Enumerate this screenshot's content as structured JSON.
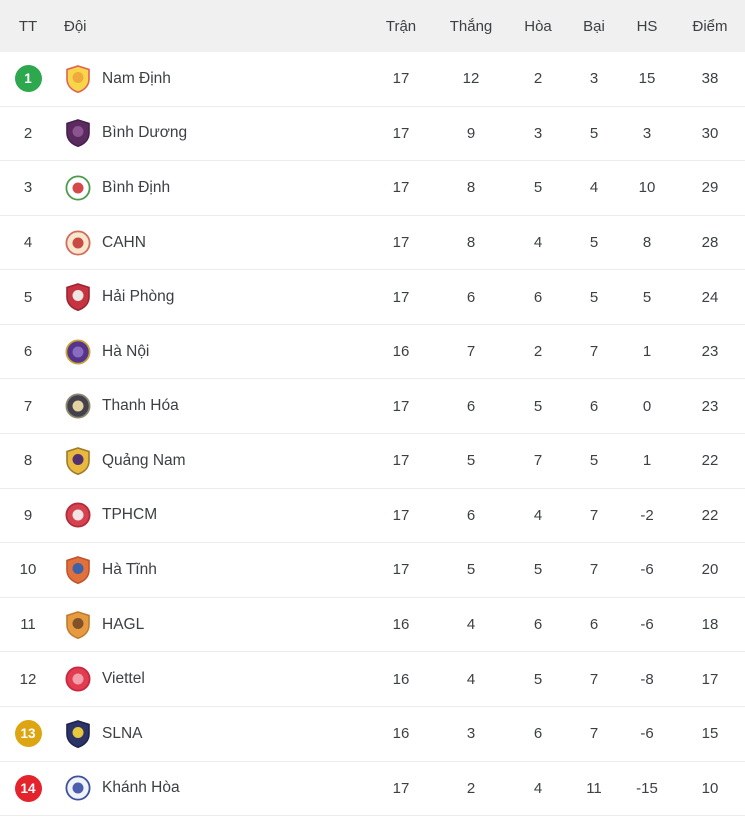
{
  "table": {
    "headers": [
      {
        "key": "pos",
        "label": "TT"
      },
      {
        "key": "team",
        "label": "Đội"
      },
      {
        "key": "played",
        "label": "Trận"
      },
      {
        "key": "won",
        "label": "Thắng"
      },
      {
        "key": "drawn",
        "label": "Hòa"
      },
      {
        "key": "lost",
        "label": "Bại"
      },
      {
        "key": "gd",
        "label": "HS"
      },
      {
        "key": "points",
        "label": "Điểm"
      }
    ],
    "marker_colors": {
      "green": "#2DA84E",
      "yellow": "#DCA511",
      "red": "#E3242D"
    },
    "rows": [
      {
        "pos": "1",
        "marker": "green",
        "team": "Nam Định",
        "played": "17",
        "won": "12",
        "drawn": "2",
        "lost": "3",
        "gd": "15",
        "points": "38",
        "badge": {
          "icon": "nam-dinh-crest-icon",
          "shape": "shield",
          "fill": "#F7D64B",
          "inner": "#EFA93C",
          "border": "#E2614F"
        }
      },
      {
        "pos": "2",
        "marker": null,
        "team": "Bình Dương",
        "played": "17",
        "won": "9",
        "drawn": "3",
        "lost": "5",
        "gd": "3",
        "points": "30",
        "badge": {
          "icon": "binh-duong-crest-icon",
          "shape": "shield",
          "fill": "#5B2B5F",
          "inner": "#8A5590",
          "border": "#47204C"
        }
      },
      {
        "pos": "3",
        "marker": null,
        "team": "Bình Định",
        "played": "17",
        "won": "8",
        "drawn": "5",
        "lost": "4",
        "gd": "10",
        "points": "29",
        "badge": {
          "icon": "binh-dinh-crest-icon",
          "shape": "circle",
          "fill": "#FFFFFF",
          "inner": "#D5494B",
          "border": "#4C9B4C"
        }
      },
      {
        "pos": "4",
        "marker": null,
        "team": "CAHN",
        "played": "17",
        "won": "8",
        "drawn": "4",
        "lost": "5",
        "gd": "8",
        "points": "28",
        "badge": {
          "icon": "cahn-crest-icon",
          "shape": "circle",
          "fill": "#F8E7CF",
          "inner": "#C94A44",
          "border": "#D46A5A"
        }
      },
      {
        "pos": "5",
        "marker": null,
        "team": "Hải Phòng",
        "played": "17",
        "won": "6",
        "drawn": "6",
        "lost": "5",
        "gd": "5",
        "points": "24",
        "badge": {
          "icon": "hai-phong-crest-icon",
          "shape": "shield",
          "fill": "#C63341",
          "inner": "#EDE7E2",
          "border": "#9E2431"
        }
      },
      {
        "pos": "6",
        "marker": null,
        "team": "Hà Nội",
        "played": "16",
        "won": "7",
        "drawn": "2",
        "lost": "7",
        "gd": "1",
        "points": "23",
        "badge": {
          "icon": "ha-noi-crest-icon",
          "shape": "circle",
          "fill": "#55348C",
          "inner": "#8A6BC0",
          "border": "#C9A437"
        }
      },
      {
        "pos": "7",
        "marker": null,
        "team": "Thanh Hóa",
        "played": "17",
        "won": "6",
        "drawn": "5",
        "lost": "6",
        "gd": "0",
        "points": "23",
        "badge": {
          "icon": "thanh-hoa-crest-icon",
          "shape": "circle",
          "fill": "#43414B",
          "inner": "#E3D3A1",
          "border": "#8E876F"
        }
      },
      {
        "pos": "8",
        "marker": null,
        "team": "Quảng Nam",
        "played": "17",
        "won": "5",
        "drawn": "7",
        "lost": "5",
        "gd": "1",
        "points": "22",
        "badge": {
          "icon": "quang-nam-crest-icon",
          "shape": "shield",
          "fill": "#E7B93F",
          "inner": "#53306E",
          "border": "#A07A2A"
        }
      },
      {
        "pos": "9",
        "marker": null,
        "team": "TPHCM",
        "played": "17",
        "won": "6",
        "drawn": "4",
        "lost": "7",
        "gd": "-2",
        "points": "22",
        "badge": {
          "icon": "tphcm-crest-icon",
          "shape": "circle",
          "fill": "#D64250",
          "inner": "#F2E4E4",
          "border": "#B22B39"
        }
      },
      {
        "pos": "10",
        "marker": null,
        "team": "Hà Tĩnh",
        "played": "17",
        "won": "5",
        "drawn": "5",
        "lost": "7",
        "gd": "-6",
        "points": "20",
        "badge": {
          "icon": "ha-tinh-crest-icon",
          "shape": "shield",
          "fill": "#E0703C",
          "inner": "#3E62A8",
          "border": "#C2522B"
        }
      },
      {
        "pos": "11",
        "marker": null,
        "team": "HAGL",
        "played": "16",
        "won": "4",
        "drawn": "6",
        "lost": "6",
        "gd": "-6",
        "points": "18",
        "badge": {
          "icon": "hagl-crest-icon",
          "shape": "shield",
          "fill": "#E79B41",
          "inner": "#82512A",
          "border": "#C27B2E"
        }
      },
      {
        "pos": "12",
        "marker": null,
        "team": "Viettel",
        "played": "16",
        "won": "4",
        "drawn": "5",
        "lost": "7",
        "gd": "-8",
        "points": "17",
        "badge": {
          "icon": "viettel-crest-icon",
          "shape": "circle",
          "fill": "#E23C50",
          "inner": "#F29FAB",
          "border": "#C92740"
        }
      },
      {
        "pos": "13",
        "marker": "yellow",
        "team": "SLNA",
        "played": "16",
        "won": "3",
        "drawn": "6",
        "lost": "7",
        "gd": "-6",
        "points": "15",
        "badge": {
          "icon": "slna-crest-icon",
          "shape": "shield",
          "fill": "#2C3368",
          "inner": "#E7C83D",
          "border": "#1E2449"
        }
      },
      {
        "pos": "14",
        "marker": "red",
        "team": "Khánh Hòa",
        "played": "17",
        "won": "2",
        "drawn": "4",
        "lost": "11",
        "gd": "-15",
        "points": "10",
        "badge": {
          "icon": "khanh-hoa-crest-icon",
          "shape": "circle",
          "fill": "#EFF2F7",
          "inner": "#4A5EAD",
          "border": "#3C50A0"
        }
      }
    ]
  },
  "colors": {
    "header_bg": "#f0f0f0",
    "row_bg": "#ffffff",
    "separator": "#ececec",
    "text": "#3c4043"
  }
}
